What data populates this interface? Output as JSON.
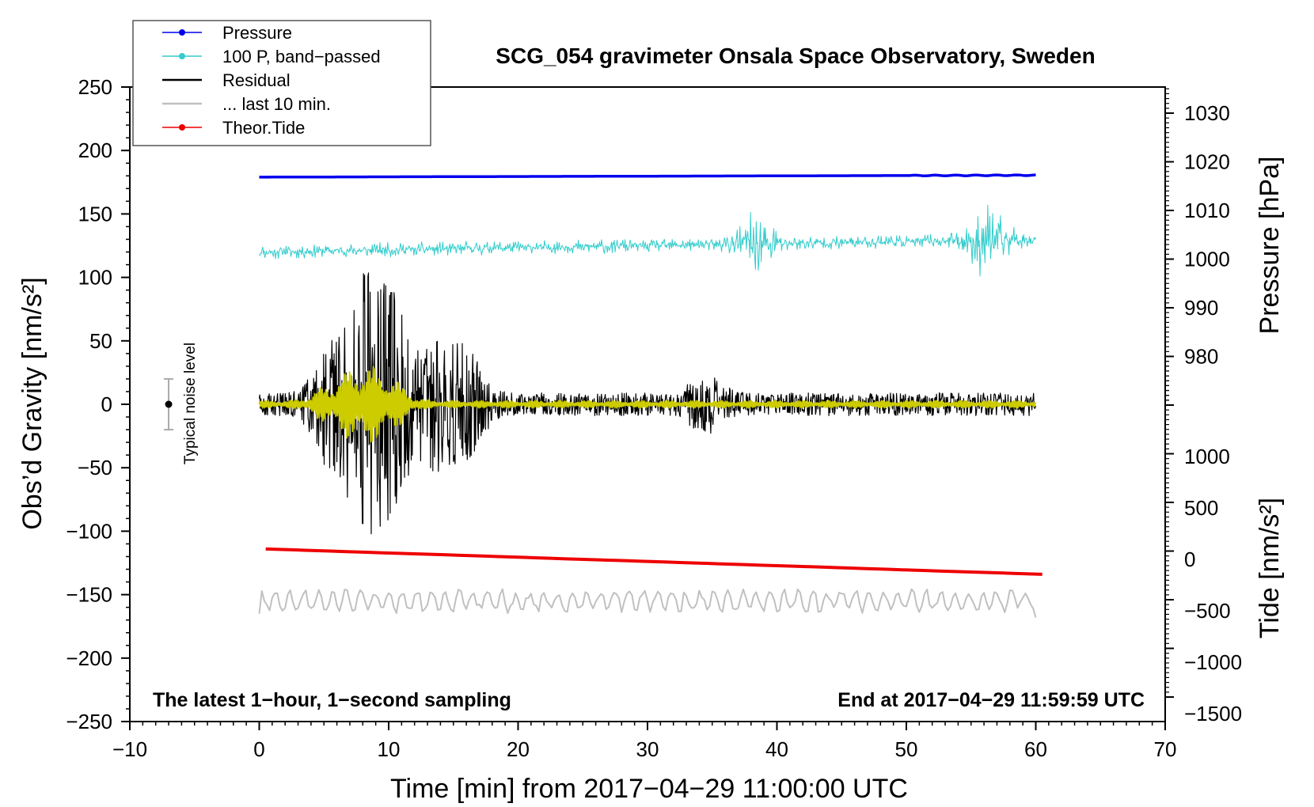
{
  "chart_data": {
    "type": "line",
    "title": "SCG_054 gravimeter Onsala Space Observatory, Sweden",
    "xlabel": "Time [min] from 2017−04−29 11:00:00 UTC",
    "ylabel_left": "Obs’d Gravity [nm/s²]",
    "ylabel_right_pressure": "Pressure [hPa]",
    "ylabel_right_tide": "Tide [nm/s²]",
    "xlim": [
      -10,
      70
    ],
    "ylim": [
      -250,
      250
    ],
    "x_ticks": [
      "−10",
      "0",
      "10",
      "20",
      "30",
      "40",
      "50",
      "60",
      "70"
    ],
    "y_ticks": [
      "250",
      "200",
      "150",
      "100",
      "50",
      "0",
      "−50",
      "−100",
      "−150",
      "−200",
      "−250"
    ],
    "pressure_axis": {
      "ticks": [
        "1030",
        "1020",
        "1010",
        "1000",
        "990",
        "980"
      ],
      "tick_values": [
        1030,
        1020,
        1010,
        1000,
        990,
        980
      ]
    },
    "tide_axis": {
      "ticks": [
        "1000",
        "500",
        "0",
        "−500",
        "−1000",
        "−1500"
      ],
      "tick_values": [
        1000,
        500,
        0,
        -500,
        -1000,
        -1500
      ]
    },
    "legend": {
      "placement": "top-left",
      "entries": [
        {
          "label": "Pressure",
          "color": "#0000ee",
          "marker": true
        },
        {
          "label": "100 P, band−passed",
          "color": "#33cccc",
          "marker": true
        },
        {
          "label": "Residual",
          "color": "#000000",
          "marker": false
        },
        {
          "label": "... last 10 min.",
          "color": "#c0c0c0",
          "marker": false
        },
        {
          "label": "Theor.Tide",
          "color": "#ee0000",
          "marker": true
        }
      ]
    },
    "annotations": {
      "bottom_left": "The latest 1−hour, 1−second sampling",
      "bottom_right": "End at 2017−04−29 11:59:59 UTC",
      "noise_label": "Typical noise level",
      "noise_level": {
        "x": -7,
        "center": 0,
        "half_range": 20
      }
    },
    "series": [
      {
        "name": "Pressure",
        "color": "#0000ee",
        "x_range": [
          0,
          60
        ],
        "offset": 179,
        "trend": 1.5
      },
      {
        "name": "100 P, band−passed",
        "color": "#33cccc",
        "x_range": [
          0,
          60
        ],
        "offset": 120,
        "trend": 10,
        "amplitude": 6,
        "bursts": [
          {
            "x": 38.5,
            "amp": 22
          },
          {
            "x": 56.3,
            "amp": 26
          }
        ]
      },
      {
        "name": "Residual",
        "color": "#000000",
        "x_range": [
          0,
          60
        ],
        "offset": 0,
        "amplitude": 9,
        "max": 88,
        "min": -94,
        "bursts": [
          {
            "x": 5.5,
            "amp": 40
          },
          {
            "x": 8.0,
            "amp": 80
          },
          {
            "x": 10.2,
            "amp": 75
          },
          {
            "x": 13.5,
            "amp": 40
          },
          {
            "x": 16.0,
            "amp": 35
          },
          {
            "x": 34.5,
            "amp": 15
          }
        ]
      },
      {
        "name": "Residual filtered",
        "color": "#cccc00",
        "x_range": [
          0,
          60
        ],
        "offset": 0,
        "amplitude": 3,
        "bursts": [
          {
            "x": 5.5,
            "amp": 12
          },
          {
            "x": 7.8,
            "amp": 26
          },
          {
            "x": 10.0,
            "amp": 18
          }
        ]
      },
      {
        "name": "Theor.Tide",
        "color": "#ee0000",
        "x_range": [
          0.5,
          60.5
        ],
        "start": -114,
        "end": -134
      },
      {
        "name": "... last 10 min.",
        "color": "#c0c0c0",
        "x_range": [
          0,
          60
        ],
        "offset": -155,
        "amplitude": 9
      }
    ]
  }
}
